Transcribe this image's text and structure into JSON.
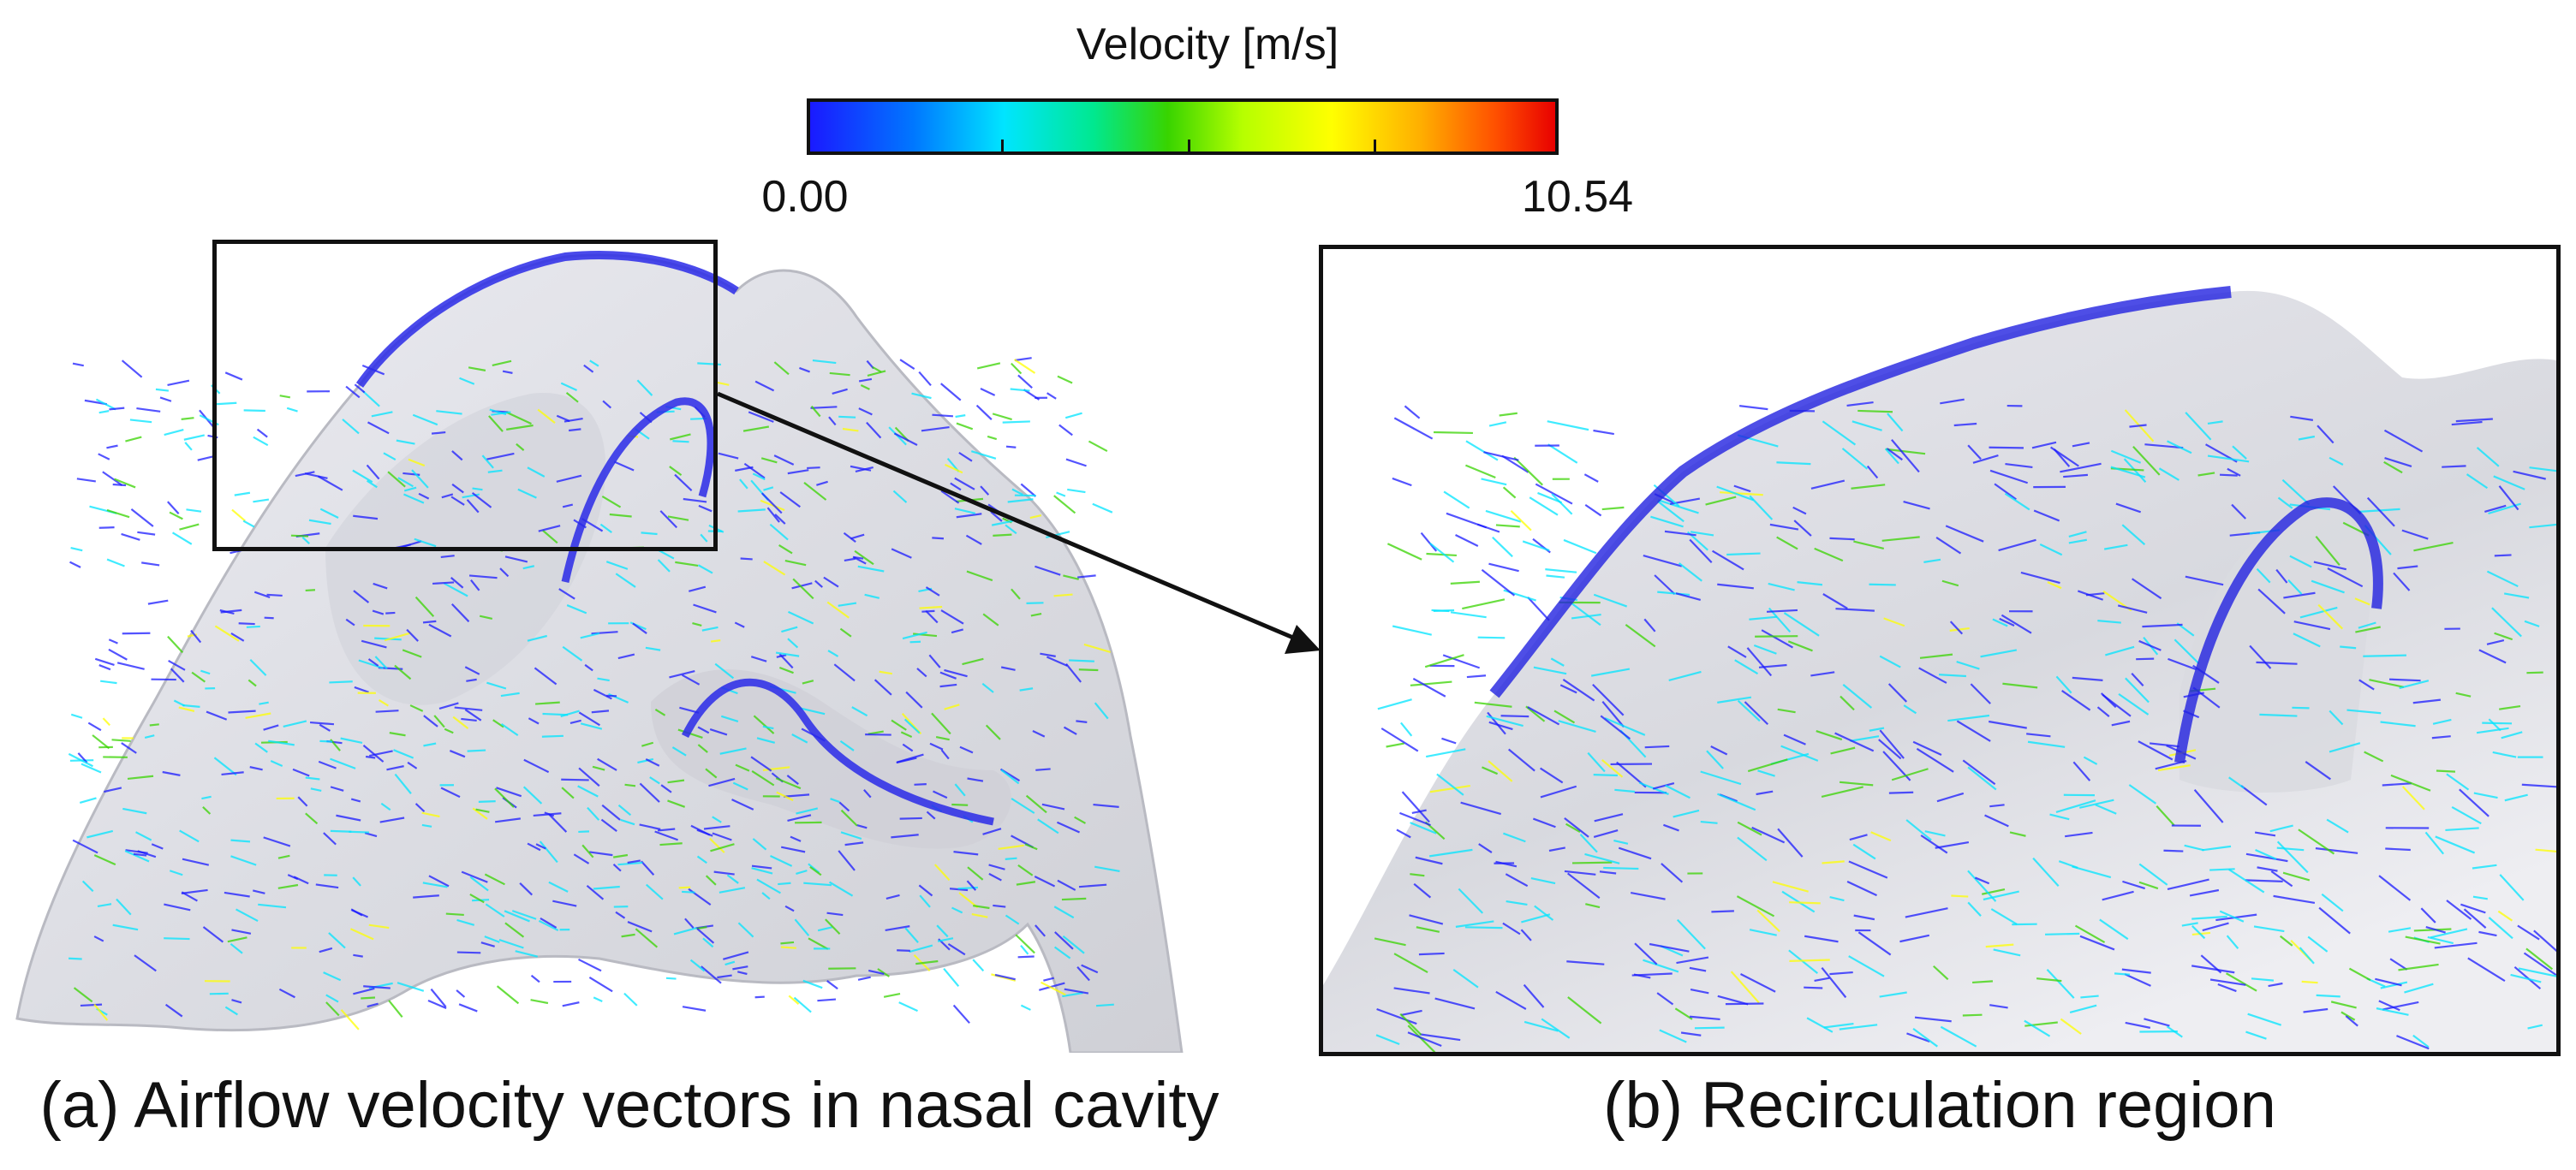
{
  "colorbar": {
    "title": "Velocity [m/s]",
    "min_label": "0.00",
    "max_label": "10.54",
    "colors": [
      "#1a1aff",
      "#00e5ff",
      "#38d400",
      "#ffff00",
      "#e80000"
    ]
  },
  "panel_a": {
    "caption": "(a) Airflow velocity vectors in nasal cavity"
  },
  "panel_b": {
    "caption": "(b) Recirculation region"
  }
}
